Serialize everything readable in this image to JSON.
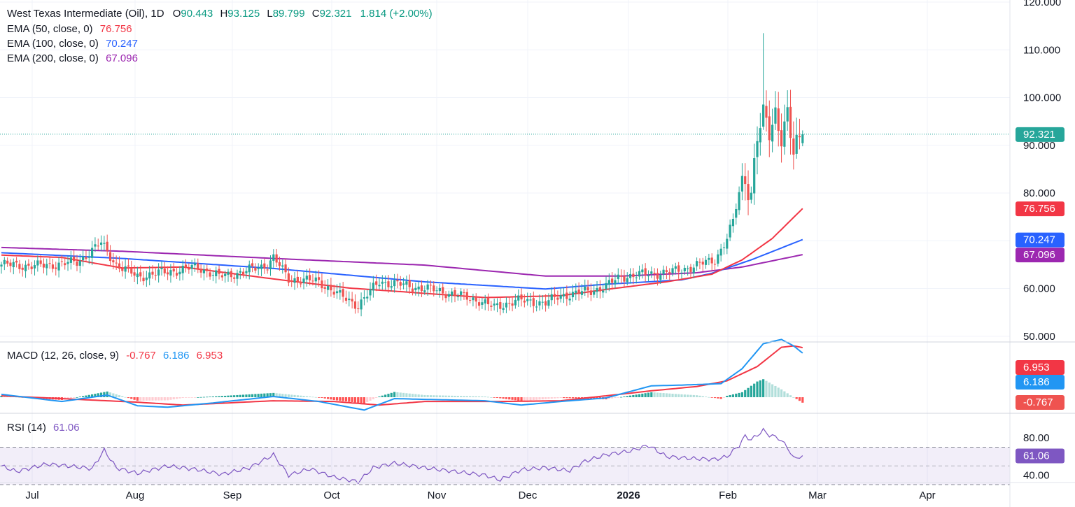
{
  "colors": {
    "up": "#26a69a",
    "down": "#ef5350",
    "ema50": "#f23645",
    "ema100": "#2962ff",
    "ema200": "#9c27b0",
    "macd": "#2196f3",
    "signal": "#f23645",
    "rsi": "#7e57c2",
    "teal_text": "#089981"
  },
  "header": {
    "symbol": "West Texas Intermediate (Oil), 1D",
    "o_label": "O",
    "o_value": "90.443",
    "h_label": "H",
    "h_value": "93.125",
    "l_label": "L",
    "l_value": "89.799",
    "c_label": "C",
    "c_value": "92.321",
    "change": "1.814 (+2.00%)"
  },
  "indicators": {
    "ema50": {
      "label": "EMA (50, close, 0)",
      "value": "76.756"
    },
    "ema100": {
      "label": "EMA (100, close, 0)",
      "value": "70.247"
    },
    "ema200": {
      "label": "EMA (200, close, 0)",
      "value": "67.096"
    },
    "macd": {
      "label": "MACD (12, 26, close, 9)",
      "hist": "-0.767",
      "macd": "6.186",
      "signal": "6.953"
    },
    "rsi": {
      "label": "RSI (14)",
      "value": "61.06"
    }
  },
  "chart_data": {
    "type": "candlestick",
    "price_axis": {
      "ticks": [
        "120.000",
        "110.000",
        "100.000",
        "90.000",
        "80.000",
        "60.000",
        "50.000"
      ],
      "ylim": [
        50,
        120
      ]
    },
    "price_badges": {
      "last": "92.321",
      "ema50": "76.756",
      "ema100": "70.247",
      "ema200": "67.096"
    },
    "macd_axis": {
      "badges": {
        "signal": "6.953",
        "macd": "6.186",
        "hist": "-0.767"
      }
    },
    "rsi_axis": {
      "ticks": [
        "80.00",
        "40.00"
      ],
      "levels": [
        30,
        50,
        70
      ],
      "badge": "61.06"
    },
    "x_ticks": [
      "Jul",
      "Aug",
      "Sep",
      "Oct",
      "Nov",
      "Dec",
      "2026",
      "Feb",
      "Mar",
      "Apr"
    ],
    "ema_knots": {
      "ema50": [
        [
          0,
          67.0
        ],
        [
          20,
          66.5
        ],
        [
          40,
          64.3
        ],
        [
          60,
          64.5
        ],
        [
          90,
          62.0
        ],
        [
          115,
          60.1
        ],
        [
          160,
          58.1
        ],
        [
          185,
          58.5
        ],
        [
          200,
          59.8
        ],
        [
          220,
          61.4
        ],
        [
          235,
          63.0
        ],
        [
          245,
          66.0
        ],
        [
          255,
          70.5
        ],
        [
          265,
          76.756
        ]
      ],
      "ema100": [
        [
          0,
          67.5
        ],
        [
          40,
          66.3
        ],
        [
          90,
          64.2
        ],
        [
          140,
          61.4
        ],
        [
          180,
          59.9
        ],
        [
          200,
          60.9
        ],
        [
          225,
          61.8
        ],
        [
          235,
          63.2
        ],
        [
          248,
          66.0
        ],
        [
          265,
          70.247
        ]
      ],
      "ema200": [
        [
          0,
          68.6
        ],
        [
          40,
          67.8
        ],
        [
          90,
          66.3
        ],
        [
          140,
          64.9
        ],
        [
          180,
          62.6
        ],
        [
          205,
          62.6
        ],
        [
          230,
          63.3
        ],
        [
          245,
          64.5
        ],
        [
          265,
          67.096
        ]
      ]
    },
    "close_knots": [
      [
        0,
        65.0
      ],
      [
        12,
        64.7
      ],
      [
        25,
        65.5
      ],
      [
        33,
        69.5
      ],
      [
        38,
        65.0
      ],
      [
        45,
        62.5
      ],
      [
        55,
        63.5
      ],
      [
        65,
        64.5
      ],
      [
        72,
        62.5
      ],
      [
        80,
        63.5
      ],
      [
        88,
        65.0
      ],
      [
        90,
        66.5
      ],
      [
        95,
        62.0
      ],
      [
        105,
        61.5
      ],
      [
        112,
        58.5
      ],
      [
        118,
        56.5
      ],
      [
        125,
        61.5
      ],
      [
        135,
        60.5
      ],
      [
        145,
        59.5
      ],
      [
        158,
        57.5
      ],
      [
        163,
        56.0
      ],
      [
        170,
        57.5
      ],
      [
        180,
        57.0
      ],
      [
        185,
        58.5
      ],
      [
        195,
        59.5
      ],
      [
        200,
        60.5
      ],
      [
        205,
        62.5
      ],
      [
        213,
        63.0
      ],
      [
        222,
        63.5
      ],
      [
        228,
        64.5
      ],
      [
        236,
        66.0
      ],
      [
        240,
        70.5
      ],
      [
        242,
        74.0
      ],
      [
        244,
        80.0
      ],
      [
        246,
        84.0
      ],
      [
        248,
        80.0
      ],
      [
        250,
        92.0
      ],
      [
        252,
        95.0
      ],
      [
        254,
        93.0
      ],
      [
        256,
        97.0
      ],
      [
        258,
        93.0
      ],
      [
        260,
        95.5
      ],
      [
        262,
        88.0
      ],
      [
        264,
        90.443
      ],
      [
        265,
        92.321
      ]
    ],
    "macd_knots": {
      "macd": [
        [
          0,
          0.4
        ],
        [
          10,
          -0.1
        ],
        [
          20,
          -0.6
        ],
        [
          35,
          0.3
        ],
        [
          45,
          -1.2
        ],
        [
          55,
          -1.4
        ],
        [
          70,
          -0.8
        ],
        [
          90,
          0.1
        ],
        [
          105,
          -0.6
        ],
        [
          120,
          -1.8
        ],
        [
          130,
          -0.2
        ],
        [
          150,
          -0.4
        ],
        [
          160,
          -0.5
        ],
        [
          172,
          -1.1
        ],
        [
          185,
          -0.6
        ],
        [
          200,
          -0.1
        ],
        [
          215,
          1.6
        ],
        [
          225,
          1.7
        ],
        [
          238,
          1.9
        ],
        [
          245,
          4.0
        ],
        [
          252,
          7.5
        ],
        [
          258,
          8.1
        ],
        [
          262,
          7.2
        ],
        [
          265,
          6.186
        ]
      ],
      "signal": [
        [
          0,
          0.2
        ],
        [
          20,
          -0.2
        ],
        [
          45,
          -0.7
        ],
        [
          60,
          -1.1
        ],
        [
          90,
          -0.5
        ],
        [
          110,
          -0.6
        ],
        [
          125,
          -1.1
        ],
        [
          140,
          -0.6
        ],
        [
          165,
          -0.6
        ],
        [
          185,
          -0.5
        ],
        [
          200,
          0.2
        ],
        [
          215,
          0.9
        ],
        [
          230,
          1.5
        ],
        [
          240,
          2.3
        ],
        [
          250,
          4.3
        ],
        [
          258,
          7.0
        ],
        [
          262,
          7.2
        ],
        [
          265,
          6.953
        ]
      ]
    },
    "rsi_knots": [
      [
        0,
        50
      ],
      [
        5,
        44
      ],
      [
        15,
        52
      ],
      [
        25,
        49
      ],
      [
        30,
        47
      ],
      [
        34,
        67
      ],
      [
        38,
        48
      ],
      [
        45,
        42
      ],
      [
        55,
        50
      ],
      [
        65,
        46
      ],
      [
        73,
        41
      ],
      [
        82,
        48
      ],
      [
        90,
        62
      ],
      [
        95,
        40
      ],
      [
        102,
        47
      ],
      [
        110,
        38
      ],
      [
        118,
        33
      ],
      [
        123,
        48
      ],
      [
        130,
        53
      ],
      [
        140,
        48
      ],
      [
        150,
        44
      ],
      [
        160,
        40
      ],
      [
        165,
        35
      ],
      [
        172,
        46
      ],
      [
        180,
        48
      ],
      [
        188,
        45
      ],
      [
        193,
        55
      ],
      [
        200,
        62
      ],
      [
        208,
        66
      ],
      [
        214,
        72
      ],
      [
        220,
        60
      ],
      [
        228,
        58
      ],
      [
        236,
        57
      ],
      [
        240,
        60
      ],
      [
        244,
        72
      ],
      [
        246,
        82
      ],
      [
        248,
        78
      ],
      [
        252,
        88
      ],
      [
        254,
        83
      ],
      [
        257,
        80
      ],
      [
        260,
        70
      ],
      [
        262,
        58
      ],
      [
        265,
        61.06
      ]
    ]
  }
}
